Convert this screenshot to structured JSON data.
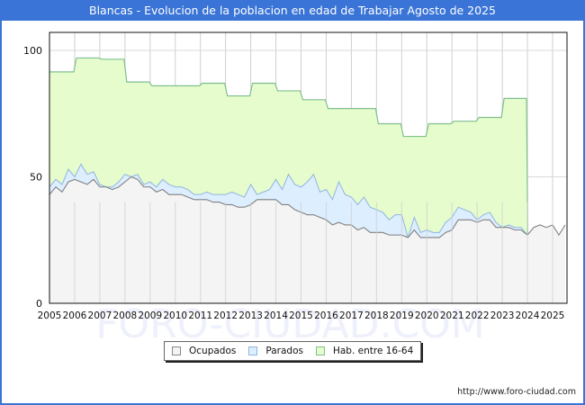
{
  "header": {
    "title": "Blancas - Evolucion de la poblacion en edad de Trabajar Agosto de 2025"
  },
  "footer": {
    "url": "http://www.foro-ciudad.com"
  },
  "watermark": "FORO-CIUDAD.COM",
  "legend": {
    "items": [
      {
        "label": "Ocupados",
        "color": "#f4f4f4",
        "border": "#888888"
      },
      {
        "label": "Parados",
        "color": "#ddeeff",
        "border": "#8fb4e0"
      },
      {
        "label": "Hab. entre 16-64",
        "color": "#e6fccc",
        "border": "#7fbf8f"
      }
    ]
  },
  "chart_data": {
    "type": "area",
    "title": "Blancas - Evolucion de la poblacion en edad de Trabajar Agosto de 2025",
    "xlabel": "",
    "ylabel": "",
    "x_ticks": [
      "2005",
      "2006",
      "2007",
      "2008",
      "2009",
      "2010",
      "2011",
      "2012",
      "2013",
      "2014",
      "2015",
      "2016",
      "2017",
      "2018",
      "2019",
      "2020",
      "2021",
      "2022",
      "2023",
      "2024",
      "2025"
    ],
    "y_ticks": [
      0,
      50,
      100
    ],
    "ylim": [
      0,
      108
    ],
    "xlim": [
      2005,
      2025.6
    ],
    "grid": true,
    "legend_position": "bottom",
    "series": [
      {
        "name": "Hab. entre 16-64",
        "step": true,
        "x": [
          2005,
          2006,
          2007,
          2008,
          2009,
          2010,
          2011,
          2012,
          2013,
          2014,
          2015,
          2016,
          2017,
          2018,
          2019,
          2020,
          2021,
          2022,
          2023
        ],
        "values": [
          91.5,
          97,
          96.5,
          87.5,
          86,
          86,
          87,
          82,
          87,
          84,
          80.5,
          77,
          77,
          71,
          66,
          71,
          72,
          73.5,
          81
        ]
      },
      {
        "name": "Parados (Ocupados + Parados)",
        "x": [
          2005,
          2005.25,
          2005.5,
          2005.75,
          2006,
          2006.25,
          2006.5,
          2006.75,
          2007,
          2007.25,
          2007.5,
          2007.75,
          2008,
          2008.25,
          2008.5,
          2008.75,
          2009,
          2009.25,
          2009.5,
          2009.75,
          2010,
          2010.25,
          2010.5,
          2010.75,
          2011,
          2011.25,
          2011.5,
          2011.75,
          2012,
          2012.25,
          2012.5,
          2012.75,
          2013,
          2013.25,
          2013.5,
          2013.75,
          2014,
          2014.25,
          2014.5,
          2014.75,
          2015,
          2015.25,
          2015.5,
          2015.75,
          2016,
          2016.25,
          2016.5,
          2016.75,
          2017,
          2017.25,
          2017.5,
          2017.75,
          2018,
          2018.25,
          2018.5,
          2018.75,
          2019,
          2019.25,
          2019.5,
          2019.75,
          2020,
          2020.25,
          2020.5,
          2020.75,
          2021,
          2021.25,
          2021.5,
          2021.75,
          2022,
          2022.25,
          2022.5,
          2022.75,
          2023,
          2023.25,
          2023.5,
          2023.75,
          2024
        ],
        "values": [
          46,
          49,
          47,
          53,
          50,
          55,
          51,
          52,
          47,
          46,
          46,
          48,
          51,
          50,
          51,
          47,
          48,
          46,
          49,
          47,
          46,
          46,
          45,
          43,
          43,
          44,
          43,
          43,
          43,
          44,
          43,
          42,
          47,
          43,
          44,
          45,
          49,
          45,
          51,
          47,
          46,
          48,
          51,
          44,
          45,
          41,
          48,
          43,
          42,
          39,
          42,
          38,
          37,
          36,
          33,
          35,
          35,
          26,
          34,
          28,
          29,
          28,
          28,
          32,
          34,
          38,
          37,
          36,
          33,
          35,
          36,
          32,
          30,
          31,
          30,
          30,
          27
        ]
      },
      {
        "name": "Ocupados",
        "x": [
          2005,
          2005.25,
          2005.5,
          2005.75,
          2006,
          2006.25,
          2006.5,
          2006.75,
          2007,
          2007.25,
          2007.5,
          2007.75,
          2008,
          2008.25,
          2008.5,
          2008.75,
          2009,
          2009.25,
          2009.5,
          2009.75,
          2010,
          2010.25,
          2010.5,
          2010.75,
          2011,
          2011.25,
          2011.5,
          2011.75,
          2012,
          2012.25,
          2012.5,
          2012.75,
          2013,
          2013.25,
          2013.5,
          2013.75,
          2014,
          2014.25,
          2014.5,
          2014.75,
          2015,
          2015.25,
          2015.5,
          2015.75,
          2016,
          2016.25,
          2016.5,
          2016.75,
          2017,
          2017.25,
          2017.5,
          2017.75,
          2018,
          2018.25,
          2018.5,
          2018.75,
          2019,
          2019.25,
          2019.5,
          2019.75,
          2020,
          2020.25,
          2020.5,
          2020.75,
          2021,
          2021.25,
          2021.5,
          2021.75,
          2022,
          2022.25,
          2022.5,
          2022.75,
          2023,
          2023.25,
          2023.5,
          2023.75,
          2024,
          2024.25,
          2024.5,
          2024.75,
          2025,
          2025.25,
          2025.5
        ],
        "values": [
          43,
          46,
          44,
          48,
          49,
          48,
          47,
          49,
          46,
          46,
          45,
          46,
          48,
          50,
          49,
          46,
          46,
          44,
          45,
          43,
          43,
          43,
          42,
          41,
          41,
          41,
          40,
          40,
          39,
          39,
          38,
          38,
          39,
          41,
          41,
          41,
          41,
          39,
          39,
          37,
          36,
          35,
          35,
          34,
          33,
          31,
          32,
          31,
          31,
          29,
          30,
          28,
          28,
          28,
          27,
          27,
          27,
          26,
          29,
          26,
          26,
          26,
          26,
          28,
          29,
          33,
          33,
          33,
          32,
          33,
          33,
          30,
          30,
          30,
          29,
          29,
          27,
          30,
          31,
          30,
          31,
          27,
          31
        ]
      }
    ]
  }
}
